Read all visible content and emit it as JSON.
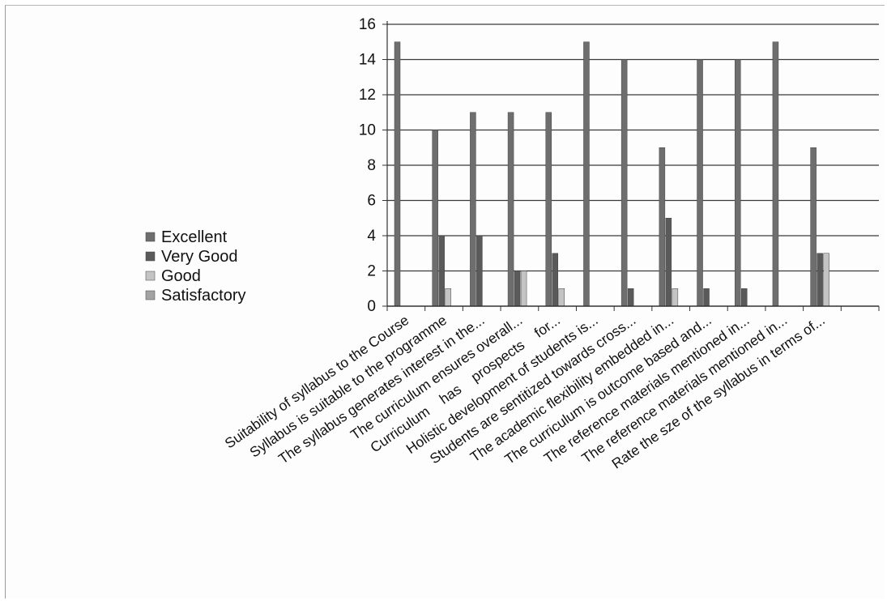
{
  "chart_data": {
    "type": "bar",
    "title": "",
    "xlabel": "",
    "ylabel": "",
    "ylim": [
      0,
      16
    ],
    "yticks": [
      0,
      2,
      4,
      6,
      8,
      10,
      12,
      14,
      16
    ],
    "grid": true,
    "legend_position": "left",
    "categories": [
      "Suitability of syllabus to the Course",
      "Syllabus is suitable to the programme",
      "The syllabus generates interest in the...",
      "The curriculum ensures overall...",
      "Curriculum    has    prospects    for...",
      "Holistic development of students is...",
      "Students are sentitized towards cross...",
      "The academic flexibility embedded in...",
      "The curriculum is outcome based and...",
      "The reference materials mentioned in...",
      "The reference materials mentioned in...",
      "Rate the sze of the syllabus in terms of..."
    ],
    "series": [
      {
        "name": "Excellent",
        "color": "#6e6e6e",
        "values": [
          15,
          10,
          11,
          11,
          11,
          15,
          14,
          9,
          14,
          14,
          15,
          9
        ]
      },
      {
        "name": "Very Good",
        "color": "#5a5a5a",
        "values": [
          0,
          4,
          4,
          2,
          3,
          0,
          1,
          5,
          1,
          1,
          0,
          3
        ]
      },
      {
        "name": "Good",
        "color": "#c4c4c4",
        "values": [
          0,
          1,
          0,
          2,
          1,
          0,
          0,
          1,
          0,
          0,
          0,
          3
        ]
      },
      {
        "name": "Satisfactory",
        "color": "#a3a3a3",
        "values": [
          0,
          0,
          0,
          0,
          0,
          0,
          0,
          0,
          0,
          0,
          0,
          0
        ]
      }
    ]
  }
}
